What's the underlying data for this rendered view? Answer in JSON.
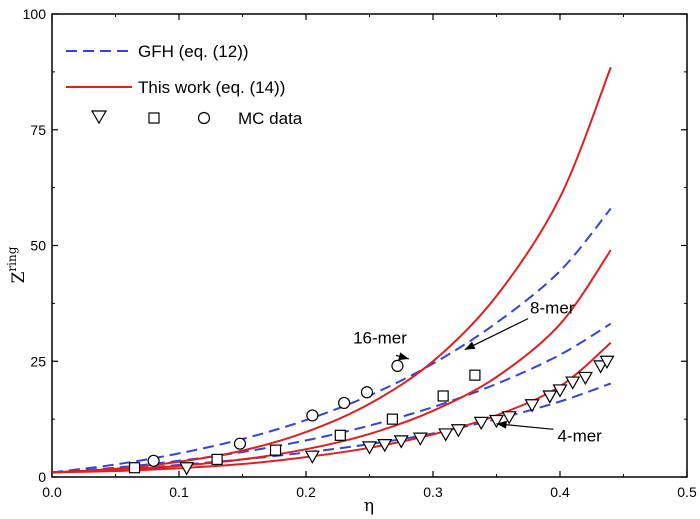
{
  "chart_data": {
    "type": "line",
    "title": "",
    "xlabel": "η",
    "ylabel": "Z",
    "ylabel_superscript": "ring",
    "xlim": [
      0.0,
      0.5
    ],
    "ylim": [
      0,
      100
    ],
    "xticks": [
      0.0,
      0.1,
      0.2,
      0.3,
      0.4,
      0.5
    ],
    "xtick_labels": [
      "0.0",
      "0.1",
      "0.2",
      "0.3",
      "0.4",
      "0.5"
    ],
    "yticks": [
      0,
      25,
      50,
      75,
      100
    ],
    "ytick_labels": [
      "0",
      "25",
      "50",
      "75",
      "100"
    ],
    "legend": {
      "position": "top-left",
      "entries": [
        {
          "label": "GFH (eq. (12))",
          "style": "dashed",
          "color": "#3344dd"
        },
        {
          "label": "This work (eq. (14))",
          "style": "solid",
          "color": "#e02020"
        },
        {
          "label": "MC data",
          "markers": [
            "triangle-down",
            "square",
            "circle"
          ]
        }
      ]
    },
    "series": [
      {
        "name": "GFH 4-mer",
        "model": "GFH",
        "chain": "4-mer",
        "style": "dashed",
        "color": "#3344dd",
        "x": [
          0.0,
          0.05,
          0.1,
          0.15,
          0.2,
          0.25,
          0.3,
          0.35,
          0.4,
          0.44
        ],
        "y": [
          1.0,
          1.6,
          2.6,
          3.8,
          5.3,
          7.1,
          9.4,
          12.5,
          16.3,
          20.2
        ]
      },
      {
        "name": "GFH 8-mer",
        "model": "GFH",
        "chain": "8-mer",
        "style": "dashed",
        "color": "#3344dd",
        "x": [
          0.0,
          0.05,
          0.1,
          0.15,
          0.2,
          0.25,
          0.3,
          0.35,
          0.4,
          0.44
        ],
        "y": [
          1.0,
          2.0,
          3.5,
          5.4,
          7.9,
          11.1,
          15.1,
          20.1,
          26.4,
          33.1
        ]
      },
      {
        "name": "GFH 16-mer",
        "model": "GFH",
        "chain": "16-mer",
        "style": "dashed",
        "color": "#3344dd",
        "x": [
          0.0,
          0.05,
          0.1,
          0.15,
          0.2,
          0.25,
          0.3,
          0.35,
          0.4,
          0.44
        ],
        "y": [
          1.0,
          2.7,
          5.1,
          8.2,
          12.3,
          17.6,
          24.5,
          33.3,
          44.5,
          58.0
        ]
      },
      {
        "name": "This work 4-mer",
        "model": "This work",
        "chain": "4-mer",
        "style": "solid",
        "color": "#e02020",
        "x": [
          0.0,
          0.05,
          0.1,
          0.15,
          0.2,
          0.25,
          0.3,
          0.35,
          0.4,
          0.44
        ],
        "y": [
          1.0,
          1.3,
          1.9,
          2.8,
          4.3,
          6.3,
          9.2,
          13.3,
          19.6,
          29.0
        ]
      },
      {
        "name": "This work 8-mer",
        "model": "This work",
        "chain": "8-mer",
        "style": "solid",
        "color": "#e02020",
        "x": [
          0.0,
          0.05,
          0.1,
          0.15,
          0.2,
          0.25,
          0.3,
          0.35,
          0.4,
          0.44
        ],
        "y": [
          1.0,
          1.5,
          2.4,
          3.8,
          6.0,
          9.3,
          14.3,
          21.6,
          33.0,
          49.0
        ]
      },
      {
        "name": "This work 16-mer",
        "model": "This work",
        "chain": "16-mer",
        "style": "solid",
        "color": "#e02020",
        "x": [
          0.0,
          0.05,
          0.1,
          0.15,
          0.2,
          0.25,
          0.3,
          0.35,
          0.4,
          0.44
        ],
        "y": [
          1.0,
          1.8,
          3.3,
          5.7,
          9.7,
          15.8,
          25.0,
          39.1,
          60.4,
          88.5
        ]
      }
    ],
    "mc_data": [
      {
        "name": "MC 4-mer",
        "chain": "4-mer",
        "marker": "triangle-down",
        "x": [
          0.106,
          0.205,
          0.25,
          0.262,
          0.275,
          0.29,
          0.31,
          0.32,
          0.338,
          0.35,
          0.36,
          0.378,
          0.392,
          0.4,
          0.41,
          0.42,
          0.432,
          0.437
        ],
        "y": [
          2.0,
          4.5,
          6.5,
          7.0,
          7.8,
          8.4,
          9.3,
          10.2,
          11.8,
          12.2,
          13.0,
          15.6,
          17.5,
          18.8,
          20.5,
          21.5,
          24.0,
          25.0
        ]
      },
      {
        "name": "MC 8-mer",
        "chain": "8-mer",
        "marker": "square",
        "x": [
          0.065,
          0.13,
          0.176,
          0.227,
          0.268,
          0.308,
          0.333
        ],
        "y": [
          2.0,
          3.8,
          5.8,
          9.0,
          12.5,
          17.5,
          22.0
        ]
      },
      {
        "name": "MC 16-mer",
        "chain": "16-mer",
        "marker": "circle",
        "x": [
          0.08,
          0.148,
          0.205,
          0.23,
          0.248,
          0.272
        ],
        "y": [
          3.5,
          7.2,
          13.3,
          16.0,
          18.3,
          24.0
        ]
      }
    ],
    "annotations": [
      {
        "text": "16-mer",
        "anchor": [
          0.263,
          28
        ],
        "target": [
          0.281,
          25.5
        ]
      },
      {
        "text": "8-mer",
        "anchor": [
          0.378,
          35.5
        ],
        "target": [
          0.325,
          27.5
        ]
      },
      {
        "text": "4-mer",
        "anchor": [
          0.398,
          9.0
        ],
        "target": [
          0.35,
          11.5
        ]
      }
    ]
  }
}
